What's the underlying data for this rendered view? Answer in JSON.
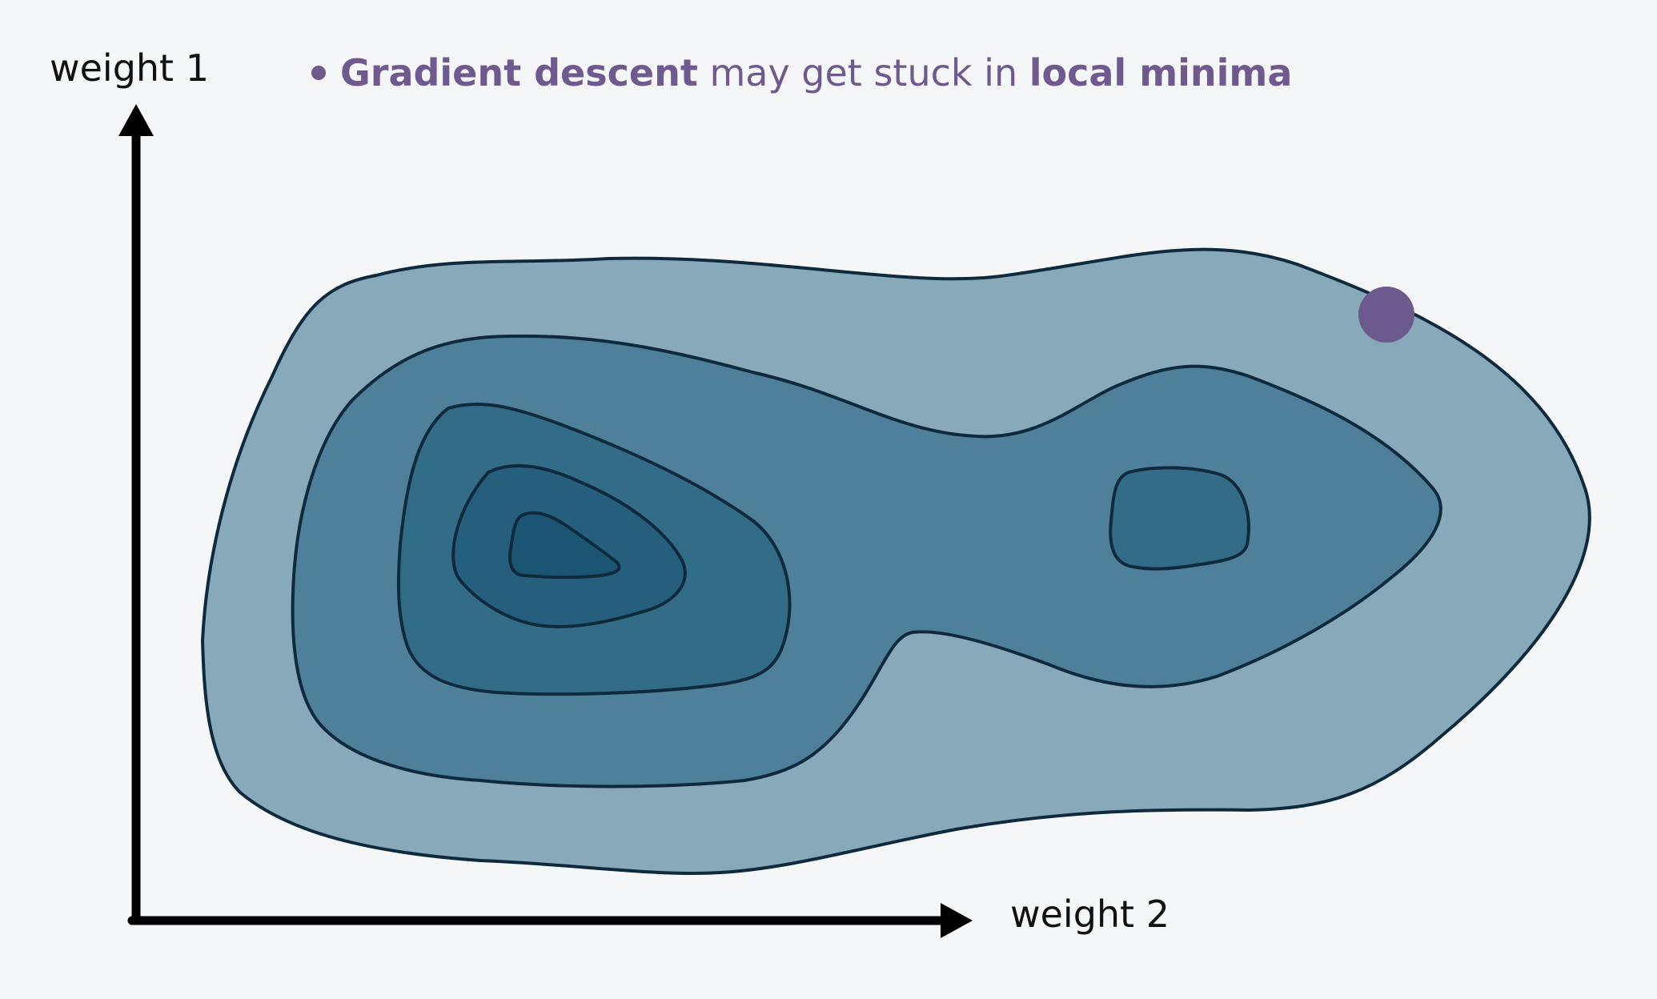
{
  "headline": {
    "part1": "Gradient descent",
    "part2": " may get stuck in ",
    "part3": "local minima"
  },
  "axes": {
    "y_label": "weight 1",
    "x_label": "weight 2"
  },
  "colors": {
    "text_accent": "#6e5a8f",
    "ball": "#6c5a8c",
    "level1": "#87a9ba",
    "level2": "#4f8099",
    "level3": "#336c86",
    "level4": "#255f7d",
    "level5": "#1a5573",
    "outline": "#0f2a3d",
    "axis": "#000000"
  },
  "landscape": {
    "contour_levels": 5,
    "minima": [
      "global-minimum",
      "local-minimum"
    ]
  }
}
